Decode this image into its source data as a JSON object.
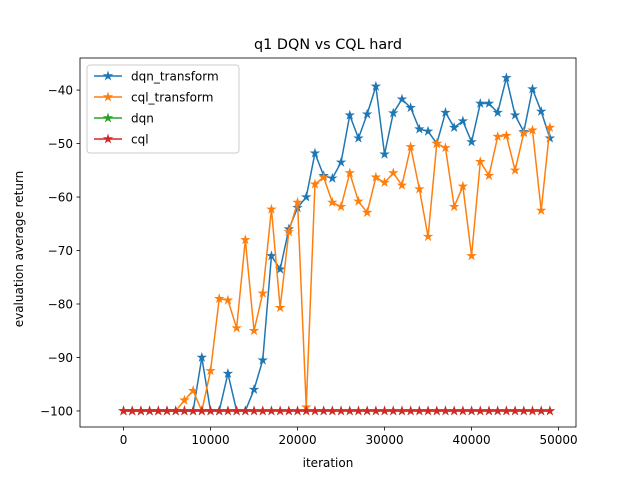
{
  "chart_data": {
    "type": "line",
    "title": "q1 DQN vs CQL hard",
    "xlabel": "iteration",
    "ylabel": "evaluation average return",
    "xlim": [
      -5000,
      52000
    ],
    "ylim": [
      -103,
      -34
    ],
    "xticks": [
      0,
      10000,
      20000,
      30000,
      40000,
      50000
    ],
    "yticks": [
      -100,
      -90,
      -80,
      -70,
      -60,
      -50,
      -40
    ],
    "legend_position": "top-left",
    "x": [
      0,
      1000,
      2000,
      3000,
      4000,
      5000,
      6000,
      7000,
      8000,
      9000,
      10000,
      11000,
      12000,
      13000,
      14000,
      15000,
      16000,
      17000,
      18000,
      19000,
      20000,
      21000,
      22000,
      23000,
      24000,
      25000,
      26000,
      27000,
      28000,
      29000,
      30000,
      31000,
      32000,
      33000,
      34000,
      35000,
      36000,
      37000,
      38000,
      39000,
      40000,
      41000,
      42000,
      43000,
      44000,
      45000,
      46000,
      47000,
      48000,
      49000
    ],
    "series": [
      {
        "name": "dqn_transform",
        "color": "#1f77b4",
        "values": [
          -100,
          -100,
          -100,
          -100,
          -100,
          -100,
          -100,
          -100,
          -100,
          -90,
          -100,
          -100,
          -93,
          -100,
          -100,
          -96,
          -90.5,
          -71,
          -73.5,
          -66,
          -62,
          -60,
          -51.8,
          -56,
          -56.5,
          -53.5,
          -44.7,
          -49,
          -44.5,
          -39.3,
          -52,
          -44.3,
          -41.7,
          -43.3,
          -47.3,
          -47.7,
          -50,
          -44.2,
          -47,
          -45.8,
          -49.7,
          -42.5,
          -42.5,
          -44.2,
          -37.7,
          -44.7,
          -47.8,
          -39.8,
          -44,
          -49
        ]
      },
      {
        "name": "cql_transform",
        "color": "#ff7f0e",
        "values": [
          -100,
          -100,
          -100,
          -100,
          -100,
          -100,
          -100,
          -98,
          -96.2,
          -100,
          -92.5,
          -79,
          -79.3,
          -84.5,
          -68,
          -85,
          -78,
          -62.3,
          -80.7,
          -66.5,
          -61,
          -99.3,
          -57.6,
          -56.3,
          -61,
          -61.8,
          -55.5,
          -60.8,
          -62.9,
          -56.3,
          -57.3,
          -55.5,
          -57.8,
          -50.6,
          -58.5,
          -67.4,
          -50,
          -50.8,
          -61.8,
          -58,
          -71,
          -53.4,
          -56,
          -48.7,
          -48.5,
          -55,
          -48,
          -47.5,
          -62.5,
          -47
        ]
      },
      {
        "name": "dqn",
        "color": "#2ca02c",
        "values": [
          -100,
          -100,
          -100,
          -100,
          -100,
          -100,
          -100,
          -100,
          -100,
          -100,
          -100,
          -100,
          -100,
          -100,
          -100,
          -100,
          -100,
          -100,
          -100,
          -100,
          -100,
          -100,
          -100,
          -100,
          -100,
          -100,
          -100,
          -100,
          -100,
          -100,
          -100,
          -100,
          -100,
          -100,
          -100,
          -100,
          -100,
          -100,
          -100,
          -100,
          -100,
          -100,
          -100,
          -100,
          -100,
          -100,
          -100,
          -100,
          -100,
          -100
        ]
      },
      {
        "name": "cql",
        "color": "#d62728",
        "values": [
          -100,
          -100,
          -100,
          -100,
          -100,
          -100,
          -100,
          -100,
          -100,
          -100,
          -100,
          -100,
          -100,
          -100,
          -100,
          -100,
          -100,
          -100,
          -100,
          -100,
          -100,
          -100,
          -100,
          -100,
          -100,
          -100,
          -100,
          -100,
          -100,
          -100,
          -100,
          -100,
          -100,
          -100,
          -100,
          -100,
          -100,
          -100,
          -100,
          -100,
          -100,
          -100,
          -100,
          -100,
          -100,
          -100,
          -100,
          -100,
          -100,
          -100
        ]
      }
    ]
  }
}
